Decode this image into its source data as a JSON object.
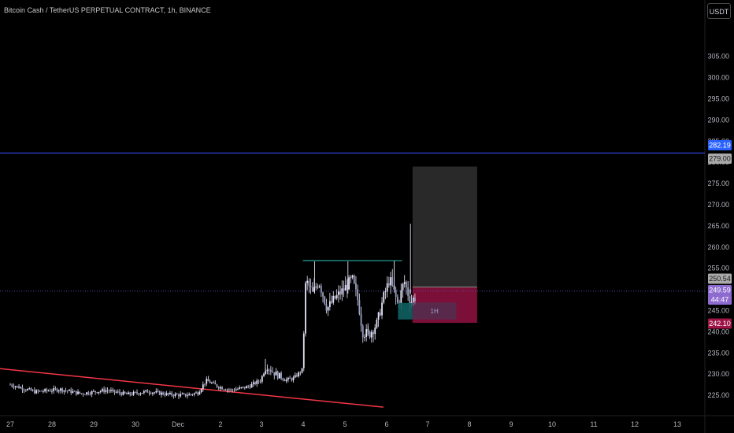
{
  "header": {
    "title": "Bitcoin Cash / TetherUS PERPETUAL CONTRACT, 1h, BINANCE",
    "currency_button": "USDT"
  },
  "colors": {
    "background": "#000000",
    "candle": "#e6e3f7",
    "resistance_line": "#26a69a",
    "horizontal_line": "#2a3fd6",
    "trend_line": "#f23645",
    "stop_zone": "#b0164f",
    "target_zone": "#2b2b2b",
    "entry_box": "#0f5f62",
    "price_tag_purple": "#8d6ad0",
    "price_tag_red": "#9e1446",
    "price_tag_blue": "#2962ff",
    "price_tag_gray": "#a9a9a9"
  },
  "chart_data": {
    "type": "candlestick",
    "title": "Bitcoin Cash / TetherUS PERPETUAL CONTRACT, 1h, BINANCE",
    "xlabel": "",
    "ylabel": "",
    "ylim": [
      220.5,
      309
    ],
    "y_ticks": [
      "225.00",
      "230.00",
      "235.00",
      "240.00",
      "245.00",
      "250.00",
      "255.00",
      "260.00",
      "265.00",
      "270.00",
      "275.00",
      "280.00",
      "285.00",
      "290.00",
      "295.00",
      "300.00",
      "305.00"
    ],
    "x_ticks": [
      "27",
      "28",
      "29",
      "30",
      "Dec",
      "2",
      "3",
      "4",
      "5",
      "6",
      "7",
      "8",
      "9",
      "10",
      "11",
      "12",
      "13"
    ],
    "x_range": [
      "Nov 27",
      "Dec 13"
    ],
    "price_tags": [
      {
        "value": "282.19",
        "style": "blue"
      },
      {
        "value": "279.00",
        "style": "gray"
      },
      {
        "value": "250.54",
        "style": "gray"
      },
      {
        "value": "249.59",
        "style": "purple"
      },
      {
        "value": "44:47",
        "style": "purple"
      },
      {
        "value": "242.10",
        "style": "red"
      }
    ],
    "horizontal_line": 282.19,
    "current_price": 249.59,
    "resistance_level": 256.8,
    "trend_line": {
      "start": 231.3,
      "end": 222.2
    },
    "position": {
      "entry": 250.54,
      "target": 279.0,
      "stop": 242.1,
      "label": "1H"
    },
    "notable_prices": {
      "range_low": 225.3,
      "breakout_high": 256.6,
      "spike_high": 265.5,
      "pullback_low": 239.0
    }
  }
}
